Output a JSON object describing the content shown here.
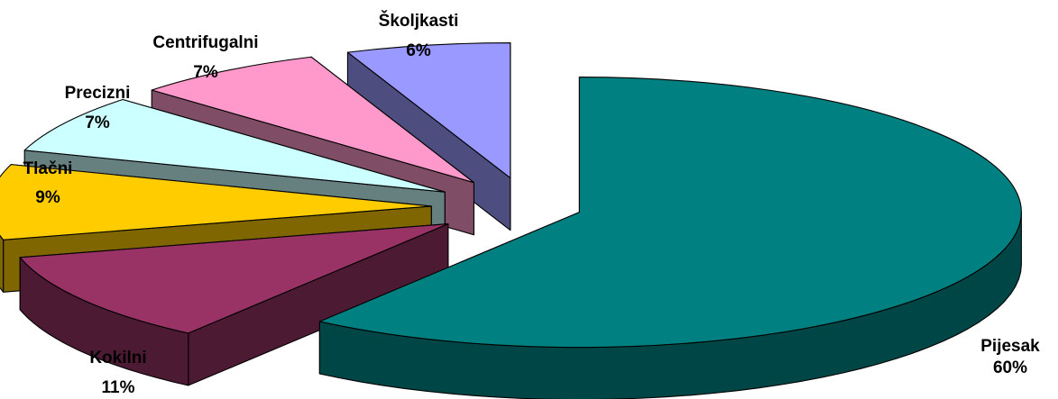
{
  "chart_data": {
    "type": "pie",
    "style": "3d-exploded",
    "title": "",
    "legend": "none",
    "slices": [
      {
        "name": "Pijesak",
        "value": 60,
        "label": "60%",
        "color": "#008080",
        "side_color": "#004646"
      },
      {
        "name": "Kokilni",
        "value": 11,
        "label": "11%",
        "color": "#993366",
        "side_color": "#4d1a33"
      },
      {
        "name": "Tlačni",
        "value": 9,
        "label": "9%",
        "color": "#ffcc00",
        "side_color": "#806600"
      },
      {
        "name": "Precizni",
        "value": 7,
        "label": "7%",
        "color": "#ccffff",
        "side_color": "#668080"
      },
      {
        "name": "Centrifugalni",
        "value": 7,
        "label": "7%",
        "color": "#ff99cc",
        "side_color": "#804d66"
      },
      {
        "name": "Školjkasti",
        "value": 6,
        "label": "6%",
        "color": "#9999ff",
        "side_color": "#4d4d80"
      }
    ]
  }
}
